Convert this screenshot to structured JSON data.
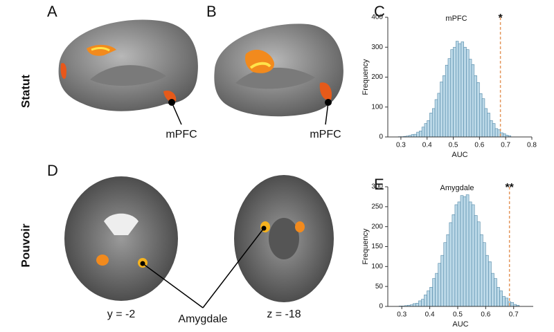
{
  "panel_letters": [
    "A",
    "B",
    "C",
    "D",
    "E"
  ],
  "row_labels": [
    "Statut",
    "Pouvoir"
  ],
  "brain_labels": {
    "mpfc_a": "mPFC",
    "mpfc_b": "mPFC",
    "slice_y": "y = -2",
    "slice_z": "z = -18",
    "amygdale": "Amygdale"
  },
  "chart_data": [
    {
      "type": "histogram",
      "title": "mPFC",
      "xlabel": "AUC",
      "ylabel": "Frequency",
      "bins": [
        0.28,
        0.29,
        0.3,
        0.31,
        0.32,
        0.33,
        0.34,
        0.35,
        0.36,
        0.37,
        0.38,
        0.39,
        0.4,
        0.41,
        0.42,
        0.43,
        0.44,
        0.45,
        0.46,
        0.47,
        0.48,
        0.49,
        0.5,
        0.51,
        0.52,
        0.53,
        0.54,
        0.55,
        0.56,
        0.57,
        0.58,
        0.59,
        0.6,
        0.61,
        0.62,
        0.63,
        0.64,
        0.65,
        0.66,
        0.67,
        0.68,
        0.69,
        0.7,
        0.71,
        0.72
      ],
      "counts": [
        0,
        1,
        1,
        2,
        3,
        5,
        8,
        9,
        16,
        20,
        33,
        45,
        55,
        80,
        95,
        125,
        146,
        184,
        205,
        240,
        262,
        292,
        300,
        320,
        312,
        318,
        300,
        292,
        260,
        242,
        205,
        182,
        145,
        128,
        95,
        80,
        55,
        45,
        28,
        24,
        14,
        11,
        6,
        4
      ],
      "color": "#bcd9e8",
      "edge_color": "#4f86a6",
      "xlim": [
        0.25,
        0.8
      ],
      "ylim": [
        0,
        400
      ],
      "xticks": [
        0.3,
        0.4,
        0.5,
        0.6,
        0.7,
        0.8
      ],
      "yticks": [
        0,
        100,
        200,
        300,
        400
      ],
      "reference_line": {
        "x": 0.68,
        "color": "#e3955a"
      },
      "annotation": "*"
    },
    {
      "type": "histogram",
      "title": "Amygdale",
      "xlabel": "AUC",
      "ylabel": "Frequency",
      "bins": [
        0.28,
        0.29,
        0.3,
        0.31,
        0.32,
        0.33,
        0.34,
        0.35,
        0.36,
        0.37,
        0.38,
        0.39,
        0.4,
        0.41,
        0.42,
        0.43,
        0.44,
        0.45,
        0.46,
        0.47,
        0.48,
        0.49,
        0.5,
        0.51,
        0.52,
        0.53,
        0.54,
        0.55,
        0.56,
        0.57,
        0.58,
        0.59,
        0.6,
        0.61,
        0.62,
        0.63,
        0.64,
        0.65,
        0.66,
        0.67,
        0.68,
        0.69,
        0.7,
        0.71,
        0.72
      ],
      "counts": [
        0,
        1,
        1,
        2,
        3,
        4,
        7,
        8,
        14,
        18,
        29,
        39,
        48,
        70,
        83,
        108,
        128,
        160,
        180,
        210,
        230,
        255,
        262,
        278,
        275,
        280,
        262,
        255,
        228,
        212,
        180,
        160,
        128,
        112,
        83,
        70,
        48,
        39,
        25,
        21,
        12,
        10,
        5,
        3
      ],
      "color": "#bcd9e8",
      "edge_color": "#4f86a6",
      "xlim": [
        0.25,
        0.77
      ],
      "ylim": [
        0,
        300
      ],
      "xticks": [
        0.3,
        0.4,
        0.5,
        0.6,
        0.7
      ],
      "yticks": [
        0,
        50,
        100,
        150,
        200,
        250,
        300
      ],
      "reference_line": {
        "x": 0.685,
        "color": "#e3955a"
      },
      "annotation": "**"
    }
  ]
}
